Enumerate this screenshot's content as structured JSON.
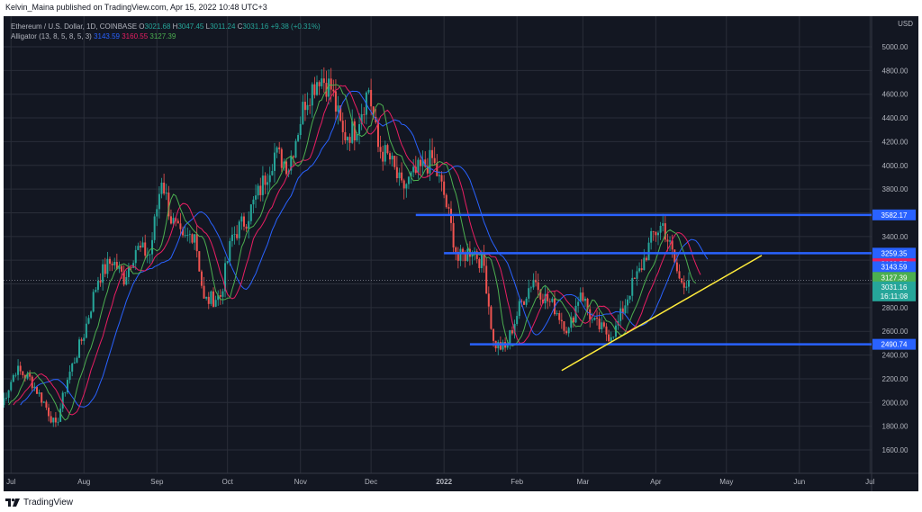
{
  "header": {
    "publisher_line": "Kelvin_Maina published on TradingView.com, Apr 15, 2022 10:48 UTC+3"
  },
  "legend": {
    "symbol_line": "Ethereum / U.S. Dollar, 1D, COINBASE",
    "o_label": "O",
    "o_value": "3021.68",
    "h_label": "H",
    "h_value": "3047.45",
    "l_label": "L",
    "l_value": "3011.24",
    "c_label": "C",
    "c_value": "3031.16",
    "change": "+9.38 (+0.31%)",
    "alligator_label": "Alligator (13, 8, 5, 8, 5, 3)",
    "jaw": "3143.59",
    "teeth": "3160.55",
    "lips": "3127.39"
  },
  "axis": {
    "currency": "USD"
  },
  "footer": {
    "brand": "TradingView"
  },
  "colors": {
    "background": "#131722",
    "up": "#26a69a",
    "down": "#ef5350",
    "jaw": "#2962ff",
    "teeth": "#e91e63",
    "lips": "#4caf50",
    "hline": "#2962ff",
    "trend": "#ffeb3b"
  },
  "chart_data": {
    "type": "candlestick",
    "title": "Ethereum / U.S. Dollar, 1D, COINBASE",
    "ylim": [
      1400,
      5100
    ],
    "y_ticks": [
      1600,
      1800,
      2000,
      2200,
      2400,
      2600,
      2800,
      3000,
      3200,
      3400,
      3600,
      3800,
      4000,
      4200,
      4400,
      4600,
      4800,
      5000
    ],
    "x_ticks": [
      {
        "label": "Jul",
        "date": "2021-07-01"
      },
      {
        "label": "Aug",
        "date": "2021-08-01"
      },
      {
        "label": "Sep",
        "date": "2021-09-01"
      },
      {
        "label": "Oct",
        "date": "2021-10-01"
      },
      {
        "label": "Nov",
        "date": "2021-11-01"
      },
      {
        "label": "Dec",
        "date": "2021-12-01"
      },
      {
        "label": "2022",
        "date": "2022-01-01"
      },
      {
        "label": "Feb",
        "date": "2022-02-01"
      },
      {
        "label": "Mar",
        "date": "2022-03-01"
      },
      {
        "label": "Apr",
        "date": "2022-04-01"
      },
      {
        "label": "May",
        "date": "2022-05-01"
      },
      {
        "label": "Jun",
        "date": "2022-06-01"
      },
      {
        "label": "Jul",
        "date": "2022-07-01"
      }
    ],
    "price_path": [
      [
        "2021-06-27",
        1980
      ],
      [
        "2021-07-03",
        2280
      ],
      [
        "2021-07-09",
        2200
      ],
      [
        "2021-07-15",
        2000
      ],
      [
        "2021-07-20",
        1790
      ],
      [
        "2021-07-25",
        2200
      ],
      [
        "2021-08-01",
        2580
      ],
      [
        "2021-08-07",
        3050
      ],
      [
        "2021-08-13",
        3200
      ],
      [
        "2021-08-18",
        3050
      ],
      [
        "2021-08-23",
        3300
      ],
      [
        "2021-08-29",
        3250
      ],
      [
        "2021-09-03",
        3900
      ],
      [
        "2021-09-07",
        3550
      ],
      [
        "2021-09-12",
        3350
      ],
      [
        "2021-09-17",
        3450
      ],
      [
        "2021-09-21",
        2850
      ],
      [
        "2021-09-28",
        2900
      ],
      [
        "2021-10-03",
        3400
      ],
      [
        "2021-10-09",
        3550
      ],
      [
        "2021-10-15",
        3800
      ],
      [
        "2021-10-21",
        4100
      ],
      [
        "2021-10-27",
        4000
      ],
      [
        "2021-11-03",
        4550
      ],
      [
        "2021-11-09",
        4760
      ],
      [
        "2021-11-14",
        4650
      ],
      [
        "2021-11-19",
        4250
      ],
      [
        "2021-11-24",
        4300
      ],
      [
        "2021-11-30",
        4650
      ],
      [
        "2021-12-04",
        4150
      ],
      [
        "2021-12-09",
        4050
      ],
      [
        "2021-12-14",
        3800
      ],
      [
        "2021-12-21",
        3950
      ],
      [
        "2021-12-27",
        4050
      ],
      [
        "2022-01-01",
        3750
      ],
      [
        "2022-01-07",
        3200
      ],
      [
        "2022-01-13",
        3300
      ],
      [
        "2022-01-18",
        3150
      ],
      [
        "2022-01-22",
        2500
      ],
      [
        "2022-01-27",
        2450
      ],
      [
        "2022-02-02",
        2800
      ],
      [
        "2022-02-08",
        3050
      ],
      [
        "2022-02-12",
        2900
      ],
      [
        "2022-02-17",
        2800
      ],
      [
        "2022-02-23",
        2600
      ],
      [
        "2022-02-28",
        2950
      ],
      [
        "2022-03-05",
        2680
      ],
      [
        "2022-03-12",
        2570
      ],
      [
        "2022-03-15",
        2620
      ],
      [
        "2022-03-21",
        2950
      ],
      [
        "2022-03-25",
        3100
      ],
      [
        "2022-03-31",
        3420
      ],
      [
        "2022-04-04",
        3500
      ],
      [
        "2022-04-08",
        3250
      ],
      [
        "2022-04-11",
        3030
      ],
      [
        "2022-04-15",
        3031
      ]
    ],
    "series": [
      {
        "name": "Jaw",
        "last": 3143.59
      },
      {
        "name": "Teeth",
        "last": 3160.55
      },
      {
        "name": "Lips",
        "last": 3127.39
      }
    ],
    "horizontal_levels": [
      {
        "price": 3582.17,
        "label": "3582.17",
        "from": "2021-12-20"
      },
      {
        "price": 3259.35,
        "label": "3259.35",
        "from": "2022-01-01"
      },
      {
        "price": 2490.74,
        "label": "2490.74",
        "from": "2022-01-12"
      }
    ],
    "trend_line": {
      "from": [
        "2022-02-20",
        2270
      ],
      "to": [
        "2022-05-16",
        3240
      ]
    },
    "price_labels": [
      {
        "price": 3160.55,
        "label": "3160.55",
        "color": "#e91e63"
      },
      {
        "price": 3143.59,
        "label": "3143.59",
        "color": "#2962ff"
      },
      {
        "price": 3127.39,
        "label": "3127.39",
        "color": "#4caf50"
      },
      {
        "price": 3031.16,
        "label": "3031.16",
        "color": "#26a69a",
        "sub": "16:11:08"
      }
    ]
  }
}
